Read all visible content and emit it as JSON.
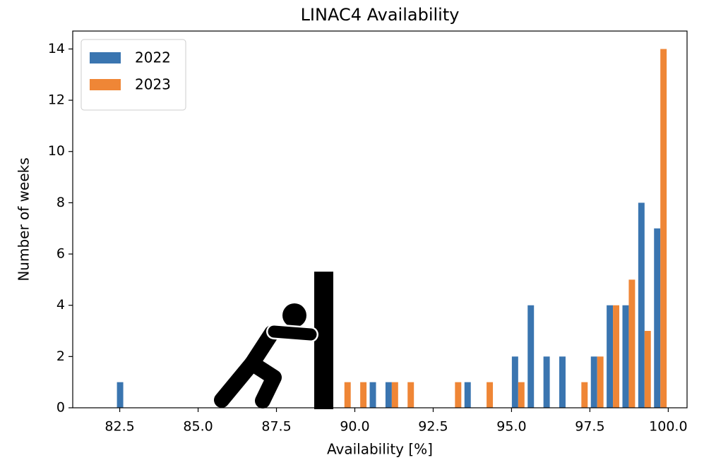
{
  "chart_data": {
    "type": "histogram",
    "title": "LINAC4 Availability",
    "x_label": "Availability [%]",
    "y_label": "Number of weeks",
    "bins": [
      82.36,
      82.864,
      83.368,
      83.872,
      84.376,
      84.88,
      85.384,
      85.888,
      86.392,
      86.896,
      87.4,
      87.904,
      88.408,
      88.912,
      89.416,
      89.92,
      90.424,
      90.928,
      91.432,
      91.936,
      92.44,
      92.944,
      93.448,
      93.952,
      94.456,
      94.96,
      95.464,
      95.968,
      96.472,
      96.976,
      97.48,
      97.984,
      98.488,
      98.992,
      99.496,
      100.0
    ],
    "series": [
      {
        "name": "2022",
        "color": "#3a75b0",
        "values": [
          1,
          0,
          0,
          0,
          0,
          0,
          0,
          0,
          0,
          0,
          0,
          0,
          0,
          0,
          0,
          0,
          1,
          1,
          0,
          0,
          0,
          0,
          1,
          0,
          0,
          2,
          4,
          2,
          2,
          0,
          2,
          4,
          4,
          8,
          7
        ]
      },
      {
        "name": "2023",
        "color": "#ef8636",
        "values": [
          0,
          0,
          0,
          0,
          0,
          0,
          0,
          0,
          0,
          0,
          0,
          0,
          0,
          0,
          1,
          1,
          0,
          1,
          1,
          0,
          0,
          1,
          0,
          1,
          0,
          1,
          0,
          0,
          0,
          1,
          2,
          4,
          5,
          3,
          14
        ]
      }
    ],
    "xlim": [
      81.0,
      100.6
    ],
    "ylim": [
      0,
      14.7
    ],
    "xticks": [
      82.5,
      {
        "value": 85,
        "label": "85.0"
      },
      87.5,
      {
        "value": 90,
        "label": "90.0"
      },
      92.5,
      {
        "value": 95,
        "label": "95.0"
      },
      97.5,
      {
        "value": 100,
        "label": "100.0"
      }
    ],
    "yticks": [
      0,
      2,
      4,
      6,
      8,
      10,
      12,
      14
    ],
    "legend": "upper left",
    "grid": false
  }
}
